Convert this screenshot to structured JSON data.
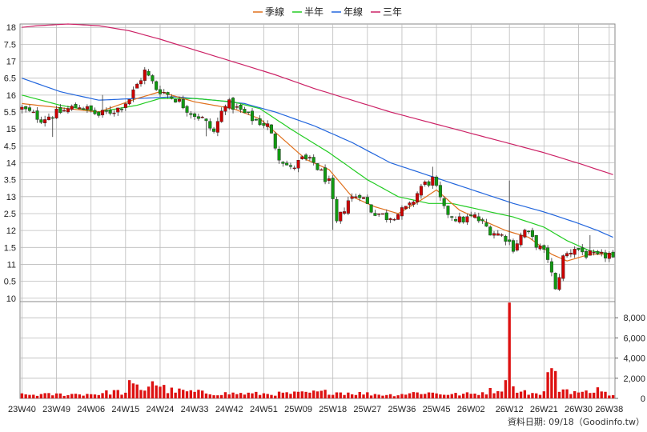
{
  "chart_data": {
    "type": "candlestick",
    "legend": [
      {
        "name": "季線",
        "color": "#e0701c"
      },
      {
        "name": "半年",
        "color": "#22cc22"
      },
      {
        "name": "年線",
        "color": "#2266dd"
      },
      {
        "name": "三年",
        "color": "#cc2266"
      }
    ],
    "price_yticks": [
      "18",
      "7.5",
      "17",
      "6.5",
      "16",
      "5.5",
      "15",
      "4.5",
      "14",
      "3.5",
      "13",
      "2.5",
      "12",
      "1.5",
      "11",
      "0.5",
      "10"
    ],
    "price_ylim": [
      9.9,
      18.1
    ],
    "volume_yticks": [
      "0",
      "2,000",
      "4,000",
      "6,000",
      "8,000"
    ],
    "volume_ylim": [
      0,
      9600
    ],
    "x_ticks": [
      "23W40",
      "23W49",
      "24W06",
      "24W15",
      "24W24",
      "24W33",
      "24W42",
      "24W51",
      "25W09",
      "25W18",
      "25W27",
      "25W36",
      "25W45",
      "26W02",
      "26W12",
      "26W21",
      "26W30",
      "26W38"
    ],
    "x_tick_week_index": [
      0,
      9,
      18,
      27,
      36,
      45,
      54,
      63,
      72,
      81,
      90,
      99,
      108,
      117,
      127,
      136,
      145,
      153
    ],
    "week_count": 155,
    "anchors": {
      "close": [
        [
          0,
          15.6
        ],
        [
          5,
          15.3
        ],
        [
          10,
          15.5
        ],
        [
          15,
          15.7
        ],
        [
          20,
          15.4
        ],
        [
          25,
          15.6
        ],
        [
          28,
          15.9
        ],
        [
          32,
          16.7
        ],
        [
          35,
          16.2
        ],
        [
          40,
          15.9
        ],
        [
          44,
          15.5
        ],
        [
          47,
          15.3
        ],
        [
          50,
          14.9
        ],
        [
          53,
          15.8
        ],
        [
          56,
          15.6
        ],
        [
          60,
          15.3
        ],
        [
          64,
          15.1
        ],
        [
          67,
          14.2
        ],
        [
          70,
          13.8
        ],
        [
          73,
          14.1
        ],
        [
          76,
          14.0
        ],
        [
          80,
          13.4
        ],
        [
          82,
          12.2
        ],
        [
          85,
          12.9
        ],
        [
          88,
          13.1
        ],
        [
          91,
          12.6
        ],
        [
          95,
          12.4
        ],
        [
          98,
          12.5
        ],
        [
          101,
          12.7
        ],
        [
          104,
          13.3
        ],
        [
          107,
          13.5
        ],
        [
          110,
          12.6
        ],
        [
          114,
          12.3
        ],
        [
          118,
          12.4
        ],
        [
          122,
          12.0
        ],
        [
          126,
          11.8
        ],
        [
          128,
          11.5
        ],
        [
          131,
          12.0
        ],
        [
          134,
          11.6
        ],
        [
          137,
          11.2
        ],
        [
          139,
          10.2
        ],
        [
          141,
          11.2
        ],
        [
          144,
          11.5
        ],
        [
          147,
          11.3
        ],
        [
          150,
          11.2
        ],
        [
          153,
          11.3
        ],
        [
          154,
          11.1
        ]
      ],
      "ma_quarter": [
        [
          0,
          15.75
        ],
        [
          20,
          15.5
        ],
        [
          30,
          15.9
        ],
        [
          36,
          16.1
        ],
        [
          45,
          15.8
        ],
        [
          55,
          15.6
        ],
        [
          62,
          15.3
        ],
        [
          68,
          14.7
        ],
        [
          74,
          14.1
        ],
        [
          80,
          13.8
        ],
        [
          86,
          13.0
        ],
        [
          92,
          12.7
        ],
        [
          98,
          12.5
        ],
        [
          104,
          12.9
        ],
        [
          108,
          13.2
        ],
        [
          114,
          12.6
        ],
        [
          120,
          12.3
        ],
        [
          126,
          12.0
        ],
        [
          132,
          11.8
        ],
        [
          138,
          11.3
        ],
        [
          142,
          11.1
        ],
        [
          148,
          11.3
        ],
        [
          154,
          11.3
        ]
      ],
      "ma_half": [
        [
          0,
          16.0
        ],
        [
          10,
          15.7
        ],
        [
          20,
          15.5
        ],
        [
          30,
          15.7
        ],
        [
          36,
          15.9
        ],
        [
          45,
          15.9
        ],
        [
          55,
          15.8
        ],
        [
          62,
          15.6
        ],
        [
          70,
          15.0
        ],
        [
          80,
          14.3
        ],
        [
          90,
          13.5
        ],
        [
          98,
          13.0
        ],
        [
          106,
          12.8
        ],
        [
          112,
          12.8
        ],
        [
          120,
          12.6
        ],
        [
          128,
          12.4
        ],
        [
          136,
          12.1
        ],
        [
          142,
          11.7
        ],
        [
          148,
          11.4
        ],
        [
          154,
          11.3
        ]
      ],
      "ma_year": [
        [
          0,
          16.5
        ],
        [
          10,
          16.1
        ],
        [
          20,
          15.85
        ],
        [
          30,
          15.9
        ],
        [
          40,
          15.95
        ],
        [
          50,
          15.85
        ],
        [
          58,
          15.75
        ],
        [
          66,
          15.5
        ],
        [
          76,
          15.1
        ],
        [
          86,
          14.6
        ],
        [
          96,
          14.0
        ],
        [
          104,
          13.7
        ],
        [
          112,
          13.4
        ],
        [
          120,
          13.1
        ],
        [
          128,
          12.8
        ],
        [
          136,
          12.55
        ],
        [
          144,
          12.25
        ],
        [
          150,
          12.0
        ],
        [
          154,
          11.8
        ]
      ],
      "ma_3yr": [
        [
          0,
          18.0
        ],
        [
          4,
          18.05
        ],
        [
          12,
          18.1
        ],
        [
          20,
          18.05
        ],
        [
          28,
          17.9
        ],
        [
          36,
          17.65
        ],
        [
          46,
          17.3
        ],
        [
          56,
          16.95
        ],
        [
          66,
          16.6
        ],
        [
          76,
          16.2
        ],
        [
          86,
          15.85
        ],
        [
          96,
          15.5
        ],
        [
          106,
          15.2
        ],
        [
          116,
          14.9
        ],
        [
          126,
          14.6
        ],
        [
          136,
          14.3
        ],
        [
          146,
          13.95
        ],
        [
          154,
          13.65
        ]
      ],
      "volume": [
        [
          0,
          350
        ],
        [
          20,
          450
        ],
        [
          24,
          700
        ],
        [
          27,
          500
        ],
        [
          28,
          1300
        ],
        [
          32,
          900
        ],
        [
          34,
          1700
        ],
        [
          38,
          800
        ],
        [
          50,
          500
        ],
        [
          64,
          450
        ],
        [
          72,
          500
        ],
        [
          80,
          650
        ],
        [
          96,
          350
        ],
        [
          104,
          600
        ],
        [
          108,
          500
        ],
        [
          112,
          400
        ],
        [
          118,
          450
        ],
        [
          124,
          900
        ],
        [
          126,
          1350
        ],
        [
          127,
          9500
        ],
        [
          128,
          1200
        ],
        [
          130,
          800
        ],
        [
          134,
          400
        ],
        [
          136,
          600
        ],
        [
          137,
          2600
        ],
        [
          138,
          3000
        ],
        [
          140,
          1000
        ],
        [
          146,
          500
        ],
        [
          150,
          1100
        ],
        [
          152,
          500
        ],
        [
          154,
          300
        ]
      ]
    },
    "volume_spikes": [
      [
        34,
        1700
      ],
      [
        127,
        9500
      ],
      [
        128,
        1200
      ],
      [
        137,
        2600
      ],
      [
        138,
        3000
      ],
      [
        150,
        1100
      ]
    ],
    "source_label": "資料日期: 09/18（Goodinfo.tw）"
  }
}
